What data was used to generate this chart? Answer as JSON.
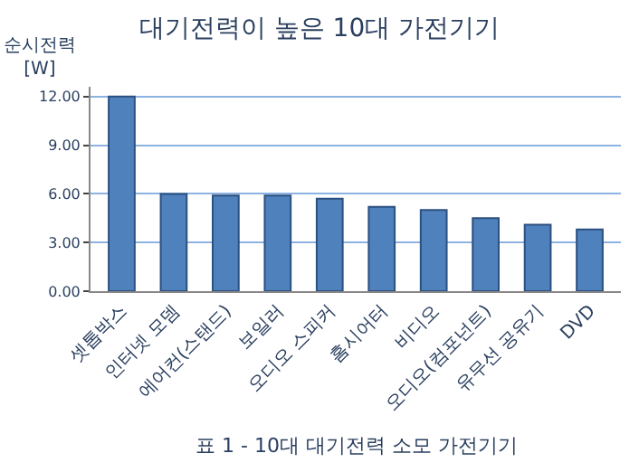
{
  "chart_data": {
    "type": "bar",
    "title": "대기전력이 높은 10대 가전기기",
    "ylabel": "순시전력\n[W]",
    "categories": [
      "셋톱박스",
      "인터넷 모뎀",
      "에어컨(스탠드)",
      "보일러",
      "오디오 스피커",
      "홈시어터",
      "비디오",
      "오디오(컴포넌트)",
      "유무선 공유기",
      "DVD"
    ],
    "values": [
      12.0,
      6.0,
      5.9,
      5.9,
      5.7,
      5.2,
      5.0,
      4.5,
      4.1,
      3.8
    ],
    "color": "#4f81bd",
    "ylim": [
      0,
      12.6
    ],
    "yticks": [
      {
        "value": 0,
        "label": "0.00"
      },
      {
        "value": 3,
        "label": "3.00"
      },
      {
        "value": 6,
        "label": "6.00"
      },
      {
        "value": 9,
        "label": "9.00"
      },
      {
        "value": 12,
        "label": "12.00"
      }
    ],
    "grid": "y",
    "annotations": [
      "표 1 - 10대 대기전력 소모 가전기기"
    ]
  }
}
